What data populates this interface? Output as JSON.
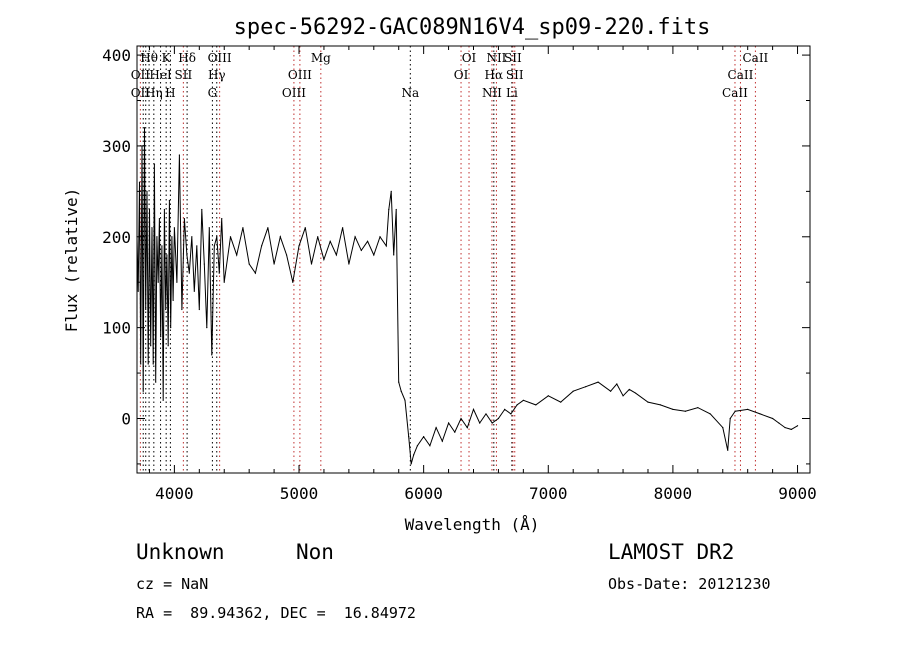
{
  "chart_data": {
    "type": "line",
    "title": "spec-56292-GAC089N16V4_sp09-220.fits",
    "xlabel": "Wavelength (Å)",
    "ylabel": "Flux (relative)",
    "xlim": [
      3700,
      9100
    ],
    "ylim": [
      -60,
      410
    ],
    "xticks": [
      4000,
      5000,
      6000,
      7000,
      8000,
      9000
    ],
    "yticks": [
      0,
      100,
      200,
      300,
      400
    ],
    "grid": false,
    "series": [
      {
        "color": "#000000",
        "x": [
          3700,
          3710,
          3720,
          3730,
          3740,
          3750,
          3760,
          3770,
          3780,
          3790,
          3800,
          3810,
          3820,
          3830,
          3840,
          3850,
          3860,
          3870,
          3880,
          3890,
          3900,
          3910,
          3920,
          3930,
          3940,
          3950,
          3960,
          3970,
          3980,
          3990,
          4000,
          4020,
          4040,
          4060,
          4080,
          4100,
          4120,
          4140,
          4160,
          4180,
          4200,
          4220,
          4240,
          4260,
          4280,
          4300,
          4320,
          4340,
          4360,
          4380,
          4400,
          4450,
          4500,
          4550,
          4600,
          4650,
          4700,
          4750,
          4800,
          4850,
          4900,
          4950,
          5000,
          5050,
          5100,
          5150,
          5200,
          5250,
          5300,
          5350,
          5400,
          5450,
          5500,
          5550,
          5600,
          5650,
          5700,
          5720,
          5740,
          5760,
          5780,
          5800,
          5820,
          5850,
          5880,
          5900,
          5920,
          5950,
          6000,
          6050,
          6100,
          6150,
          6200,
          6250,
          6300,
          6350,
          6400,
          6450,
          6500,
          6550,
          6600,
          6650,
          6700,
          6750,
          6800,
          6900,
          7000,
          7100,
          7200,
          7300,
          7400,
          7500,
          7550,
          7600,
          7650,
          7700,
          7800,
          7900,
          8000,
          8100,
          8200,
          8300,
          8400,
          8440,
          8460,
          8500,
          8600,
          8700,
          8800,
          8850,
          8900,
          8950,
          9000
        ],
        "y": [
          200,
          140,
          260,
          60,
          300,
          30,
          320,
          120,
          250,
          60,
          230,
          80,
          210,
          60,
          280,
          40,
          200,
          150,
          220,
          90,
          190,
          20,
          230,
          120,
          180,
          80,
          240,
          100,
          200,
          130,
          210,
          150,
          290,
          120,
          220,
          180,
          160,
          200,
          140,
          190,
          120,
          230,
          170,
          100,
          210,
          70,
          190,
          200,
          160,
          220,
          150,
          200,
          180,
          210,
          170,
          160,
          190,
          210,
          170,
          200,
          180,
          150,
          190,
          210,
          170,
          200,
          175,
          195,
          180,
          210,
          170,
          200,
          185,
          195,
          180,
          200,
          190,
          230,
          250,
          180,
          230,
          40,
          30,
          20,
          -20,
          -50,
          -40,
          -30,
          -20,
          -30,
          -10,
          -25,
          -5,
          -15,
          0,
          -10,
          10,
          -5,
          5,
          -5,
          0,
          10,
          5,
          15,
          20,
          15,
          25,
          18,
          30,
          35,
          40,
          30,
          38,
          25,
          32,
          28,
          18,
          15,
          10,
          8,
          12,
          5,
          -10,
          -35,
          0,
          8,
          10,
          5,
          0,
          -5,
          -10,
          -12,
          -8
        ]
      }
    ],
    "line_labels": [
      {
        "label": "Hθ",
        "x": 3797,
        "row": 1,
        "color": "#000000"
      },
      {
        "label": "OII",
        "x": 3727,
        "row": 2,
        "color": "#000000"
      },
      {
        "label": "OII",
        "x": 3727,
        "row": 3,
        "color": "#000000"
      },
      {
        "label": "K",
        "x": 3934,
        "row": 1,
        "color": "#000000"
      },
      {
        "label": "Hδ",
        "x": 4102,
        "row": 1,
        "color": "#000000"
      },
      {
        "label": "HeI",
        "x": 3889,
        "row": 2,
        "color": "#000000"
      },
      {
        "label": "SII",
        "x": 4072,
        "row": 2,
        "color": "#000000"
      },
      {
        "label": "Hη",
        "x": 3835,
        "row": 3,
        "color": "#000000"
      },
      {
        "label": "H",
        "x": 3968,
        "row": 3,
        "color": "#000000"
      },
      {
        "label": "OIII",
        "x": 4363,
        "row": 1,
        "color": "#000000"
      },
      {
        "label": "Hγ",
        "x": 4340,
        "row": 2,
        "color": "#000000"
      },
      {
        "label": "G",
        "x": 4305,
        "row": 3,
        "color": "#000000"
      },
      {
        "label": "Mg",
        "x": 5175,
        "row": 1,
        "color": "#000000"
      },
      {
        "label": "OIII",
        "x": 5007,
        "row": 2,
        "color": "#000000"
      },
      {
        "label": "OIII",
        "x": 4959,
        "row": 3,
        "color": "#000000"
      },
      {
        "label": "Na",
        "x": 5893,
        "row": 3,
        "color": "#000000"
      },
      {
        "label": "OI",
        "x": 6364,
        "row": 1,
        "color": "#000000"
      },
      {
        "label": "OI",
        "x": 6300,
        "row": 2,
        "color": "#000000"
      },
      {
        "label": "NII",
        "x": 6584,
        "row": 1,
        "color": "#000000"
      },
      {
        "label": "SII",
        "x": 6716,
        "row": 1,
        "color": "#000000"
      },
      {
        "label": "Hα",
        "x": 6563,
        "row": 2,
        "color": "#000000"
      },
      {
        "label": "SII",
        "x": 6731,
        "row": 2,
        "color": "#000000"
      },
      {
        "label": "NII",
        "x": 6548,
        "row": 3,
        "color": "#000000"
      },
      {
        "label": "Li",
        "x": 6708,
        "row": 3,
        "color": "#000000"
      },
      {
        "label": "CaII",
        "x": 8662,
        "row": 1,
        "color": "#000000"
      },
      {
        "label": "CaII",
        "x": 8542,
        "row": 2,
        "color": "#000000"
      },
      {
        "label": "CaII",
        "x": 8498,
        "row": 3,
        "color": "#000000"
      }
    ],
    "line_markers": [
      {
        "x": 3727,
        "color": "#c03030"
      },
      {
        "x": 3750,
        "color": "#000000"
      },
      {
        "x": 3770,
        "color": "#000000"
      },
      {
        "x": 3797,
        "color": "#000000"
      },
      {
        "x": 3835,
        "color": "#000000"
      },
      {
        "x": 3889,
        "color": "#000000"
      },
      {
        "x": 3934,
        "color": "#000000"
      },
      {
        "x": 3968,
        "color": "#000000"
      },
      {
        "x": 4072,
        "color": "#c03030"
      },
      {
        "x": 4102,
        "color": "#000000"
      },
      {
        "x": 4305,
        "color": "#000000"
      },
      {
        "x": 4340,
        "color": "#000000"
      },
      {
        "x": 4363,
        "color": "#c03030"
      },
      {
        "x": 4959,
        "color": "#c03030"
      },
      {
        "x": 5007,
        "color": "#c03030"
      },
      {
        "x": 5175,
        "color": "#c03030"
      },
      {
        "x": 5893,
        "color": "#000000"
      },
      {
        "x": 6300,
        "color": "#c03030"
      },
      {
        "x": 6364,
        "color": "#c03030"
      },
      {
        "x": 6548,
        "color": "#c03030"
      },
      {
        "x": 6563,
        "color": "#000000"
      },
      {
        "x": 6584,
        "color": "#c03030"
      },
      {
        "x": 6708,
        "color": "#000000"
      },
      {
        "x": 6716,
        "color": "#c03030"
      },
      {
        "x": 6731,
        "color": "#c03030"
      },
      {
        "x": 8498,
        "color": "#c03030"
      },
      {
        "x": 8542,
        "color": "#c03030"
      },
      {
        "x": 8662,
        "color": "#c03030"
      }
    ]
  },
  "info": {
    "class": "Unknown",
    "subclass": "Non",
    "survey": "LAMOST DR2",
    "cz": "cz = NaN",
    "obs_date": "Obs-Date: 20121230",
    "radec": "RA =  89.94362, DEC =  16.84972"
  }
}
